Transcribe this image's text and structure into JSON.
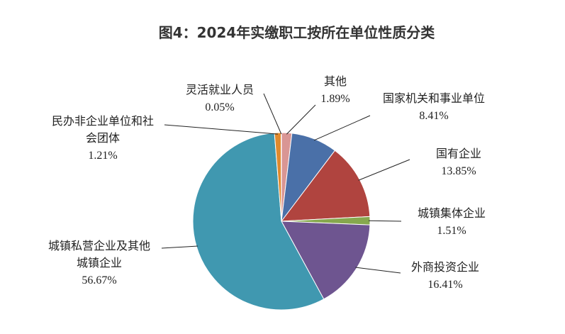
{
  "chart_data": {
    "type": "pie",
    "title": "图4：2024年实缴职工按所在单位性质分类",
    "categories": [
      "其他",
      "国家机关和事业单位",
      "国有企业",
      "城镇集体企业",
      "外商投资企业",
      "城镇私营企业及其他\n城镇企业",
      "民办非企业单位和社\n会团体",
      "灵活就业人员"
    ],
    "values": [
      1.89,
      8.41,
      13.85,
      1.51,
      16.41,
      56.67,
      1.21,
      0.05
    ],
    "value_labels": [
      "1.89%",
      "8.41%",
      "13.85%",
      "1.51%",
      "16.41%",
      "56.67%",
      "1.21%",
      "0.05%"
    ],
    "colors": [
      "#d99694",
      "#4a70a8",
      "#b0443f",
      "#86a84e",
      "#6e5590",
      "#4098b0",
      "#e08a2e",
      "#94b1d6"
    ]
  }
}
